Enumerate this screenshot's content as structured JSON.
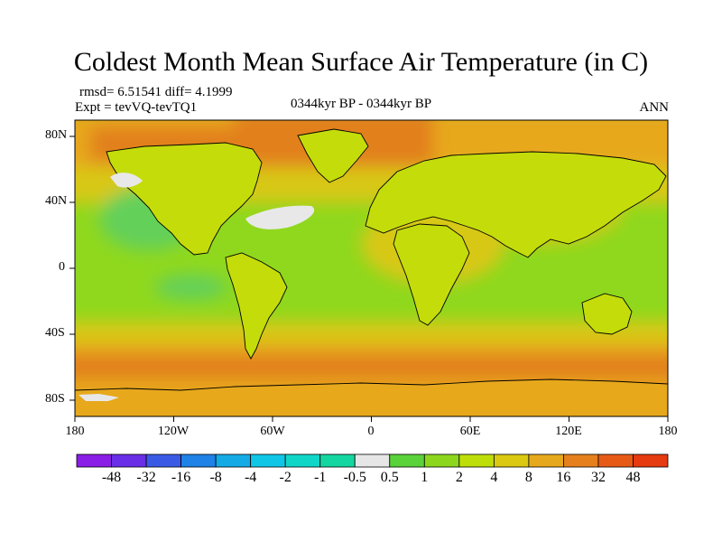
{
  "title": "Coldest Month Mean Surface Air Temperature (in C)",
  "stats_text": "rmsd= 6.51541 diff= 4.1999",
  "expt_text": "Expt = tevVQ-tevTQ1",
  "period_text": "0344kyr BP - 0344kyr BP",
  "season_text": "ANN",
  "map": {
    "lat_labels": [
      "80N",
      "40N",
      "0",
      "40S",
      "80S"
    ],
    "lon_labels": [
      "180",
      "120W",
      "60W",
      "0",
      "60E",
      "120E",
      "180"
    ],
    "colors": {
      "land_base": "#c4dc0a",
      "ocean_base": "#8fd81e",
      "ocean_cool": "#63d05a",
      "warm_yellow": "#d8c818",
      "orange": "#e7a81c",
      "dark_orange": "#e2801c",
      "red_orange": "#e05a16",
      "missing": "#e8e8e8",
      "coast": "#000000"
    }
  },
  "colorbar": {
    "labels": [
      "-48",
      "-32",
      "-16",
      "-8",
      "-4",
      "-2",
      "-1",
      "-0.5",
      "0.5",
      "1",
      "2",
      "4",
      "8",
      "16",
      "32",
      "48"
    ],
    "colors": [
      "#8a1ee6",
      "#6a2ee6",
      "#3a5ae6",
      "#1e82e6",
      "#14aae6",
      "#10c6e6",
      "#10d6c8",
      "#14d6a0",
      "#e6e6e6",
      "#5ad23a",
      "#8cd61e",
      "#bede0a",
      "#dac812",
      "#e6a81c",
      "#e6801c",
      "#e65a16",
      "#e63a10"
    ]
  }
}
